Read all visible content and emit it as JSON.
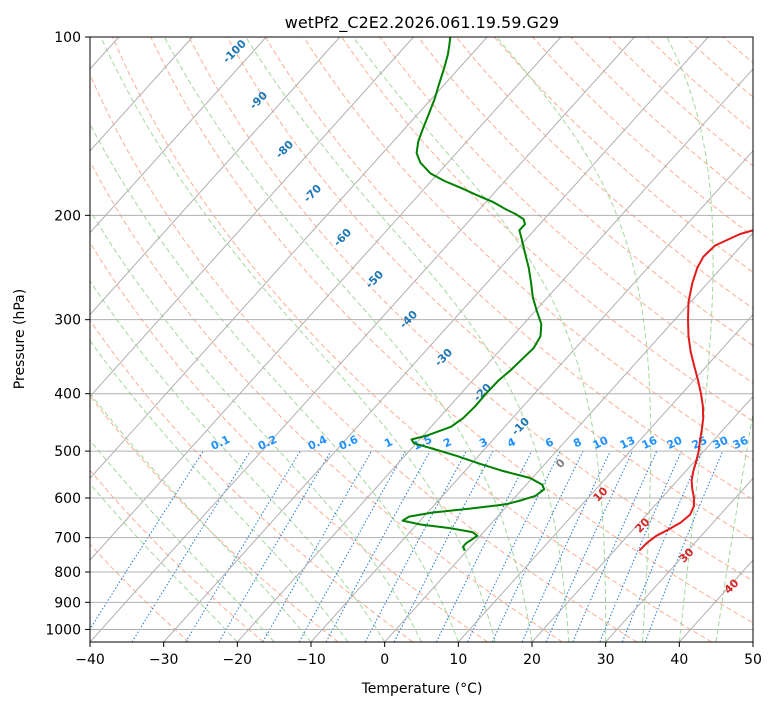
{
  "chart_data": {
    "type": "line",
    "subtype": "skew-t log-p diagram",
    "title": "wetPf2_C2E2.2026.061.19.59.G29",
    "xlabel": "Temperature (°C)",
    "ylabel": "Pressure (hPa)",
    "xlim": [
      -40,
      50
    ],
    "ylim": [
      1050,
      100
    ],
    "y_scale": "log",
    "x_ticks": [
      "−40",
      "−30",
      "−20",
      "−10",
      "0",
      "10",
      "20",
      "30",
      "40",
      "50"
    ],
    "y_ticks": [
      "100",
      "200",
      "300",
      "400",
      "500",
      "600",
      "700",
      "800",
      "900",
      "1000"
    ],
    "grid": true,
    "series": [
      {
        "color": "#e31a1c",
        "points": [
          [
            734,
            23.4
          ],
          [
            715,
            23.5
          ],
          [
            695,
            23.9
          ],
          [
            680,
            24.7
          ],
          [
            660,
            25.6
          ],
          [
            640,
            25.9
          ],
          [
            620,
            25.4
          ],
          [
            600,
            24.4
          ],
          [
            580,
            23.1
          ],
          [
            560,
            21.9
          ],
          [
            540,
            21.0
          ],
          [
            520,
            20.2
          ],
          [
            500,
            19.3
          ],
          [
            480,
            18.2
          ],
          [
            460,
            17.1
          ],
          [
            440,
            15.9
          ],
          [
            420,
            14.4
          ],
          [
            400,
            12.6
          ],
          [
            380,
            10.6
          ],
          [
            360,
            8.4
          ],
          [
            340,
            6.1
          ],
          [
            320,
            3.9
          ],
          [
            300,
            1.8
          ],
          [
            280,
            -0.3
          ],
          [
            260,
            -2.1
          ],
          [
            245,
            -3.3
          ],
          [
            235,
            -3.8
          ],
          [
            225,
            -3.6
          ],
          [
            215,
            -1.6
          ],
          [
            208,
            1.4
          ],
          [
            203,
            4.1
          ],
          [
            198,
            5.0
          ],
          [
            190,
            5.2
          ],
          [
            180,
            4.8
          ],
          [
            170,
            3.8
          ],
          [
            160,
            2.2
          ],
          [
            150,
            0.2
          ],
          [
            140,
            -2.3
          ],
          [
            130,
            -5.1
          ],
          [
            120,
            -7.9
          ],
          [
            110,
            -10.7
          ],
          [
            104,
            -12.3
          ],
          [
            100,
            -13.1
          ]
        ]
      },
      {
        "color": "#008000",
        "points": [
          [
            734,
            -0.4
          ],
          [
            725,
            -1.0
          ],
          [
            715,
            -1.0
          ],
          [
            705,
            -0.7
          ],
          [
            695,
            -0.4
          ],
          [
            685,
            -1.5
          ],
          [
            675,
            -4.9
          ],
          [
            665,
            -9.5
          ],
          [
            655,
            -12.4
          ],
          [
            645,
            -12.0
          ],
          [
            635,
            -9.4
          ],
          [
            625,
            -4.6
          ],
          [
            615,
            -0.4
          ],
          [
            605,
            1.3
          ],
          [
            595,
            2.6
          ],
          [
            580,
            3.0
          ],
          [
            570,
            2.2
          ],
          [
            555,
            -0.3
          ],
          [
            540,
            -4.9
          ],
          [
            525,
            -8.9
          ],
          [
            510,
            -12.8
          ],
          [
            495,
            -17.2
          ],
          [
            485,
            -20.3
          ],
          [
            478,
            -21.1
          ],
          [
            470,
            -19.4
          ],
          [
            455,
            -17.3
          ],
          [
            440,
            -16.7
          ],
          [
            420,
            -16.5
          ],
          [
            400,
            -16.6
          ],
          [
            380,
            -16.5
          ],
          [
            365,
            -16.1
          ],
          [
            350,
            -15.9
          ],
          [
            335,
            -15.7
          ],
          [
            320,
            -16.2
          ],
          [
            305,
            -17.6
          ],
          [
            290,
            -19.8
          ],
          [
            275,
            -22.0
          ],
          [
            260,
            -24.0
          ],
          [
            245,
            -26.2
          ],
          [
            232,
            -28.4
          ],
          [
            220,
            -30.5
          ],
          [
            212,
            -32.0
          ],
          [
            207,
            -32.0
          ],
          [
            203,
            -32.8
          ],
          [
            199,
            -34.5
          ],
          [
            195,
            -36.6
          ],
          [
            190,
            -39.0
          ],
          [
            185,
            -42.0
          ],
          [
            180,
            -45.0
          ],
          [
            175,
            -48.2
          ],
          [
            170,
            -51.0
          ],
          [
            163,
            -53.7
          ],
          [
            157,
            -55.4
          ],
          [
            150,
            -56.6
          ],
          [
            143,
            -57.5
          ],
          [
            135,
            -58.5
          ],
          [
            127,
            -59.6
          ],
          [
            120,
            -60.8
          ],
          [
            113,
            -62.0
          ],
          [
            107,
            -63.2
          ],
          [
            103,
            -64.2
          ],
          [
            100,
            -65.0
          ]
        ]
      }
    ],
    "dry_adiabat_labels": [
      "-100",
      "-90",
      "-80",
      "-70",
      "-60",
      "-50",
      "-40",
      "-30",
      "-20",
      "-10",
      "0"
    ],
    "moist_adiabat_labels": [
      "10",
      "20",
      "30",
      "40"
    ],
    "mixing_ratio_labels": [
      "0.1",
      "0.2",
      "0.4",
      "0.6",
      "1",
      "1.5",
      "2",
      "3",
      "4",
      "6",
      "8",
      "10",
      "13",
      "16",
      "20",
      "25",
      "30",
      "36"
    ],
    "colors": {
      "isotherm": "#b0b0b0",
      "isobar": "#b0b0b0",
      "dry_adiabat": "#fcae91",
      "moist_adiabat": "#a1d99b",
      "mixing_ratio": "#1f78d4",
      "thin_curve": "#e0c8b0"
    }
  }
}
